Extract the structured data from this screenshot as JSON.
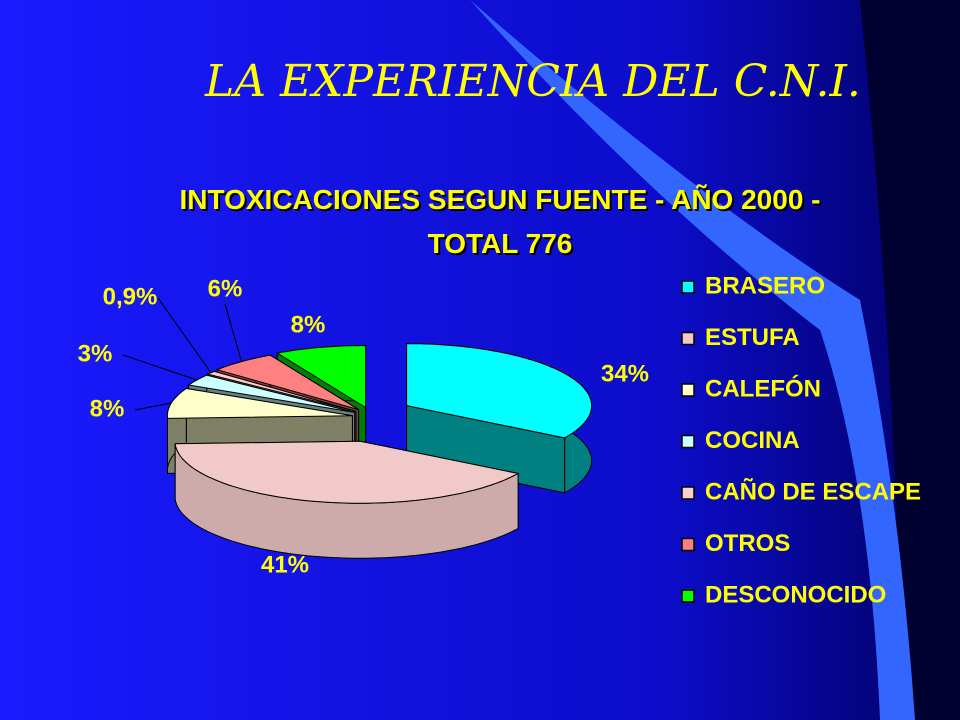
{
  "header": {
    "title": "LA EXPERIENCIA DEL C.N.I."
  },
  "chart_data": {
    "type": "pie",
    "title": "INTOXICACIONES SEGUN FUENTE - AÑO 2000 - TOTAL 776",
    "categories": [
      "BRASERO",
      "ESTUFA",
      "CALEFÓN",
      "COCINA",
      "CAÑO DE ESCAPE",
      "OTROS",
      "DESCONOCIDO"
    ],
    "values": [
      34,
      41,
      8,
      3,
      0.9,
      6,
      8
    ],
    "value_labels": [
      "34%",
      "41%",
      "8%",
      "3%",
      "0,9%",
      "6%",
      "8%"
    ],
    "colors": [
      "#00ffff",
      "#f2c9c9",
      "#ffffcc",
      "#ccffff",
      "#ffcccc",
      "#ff8080",
      "#00ff00"
    ],
    "legend": "right"
  }
}
